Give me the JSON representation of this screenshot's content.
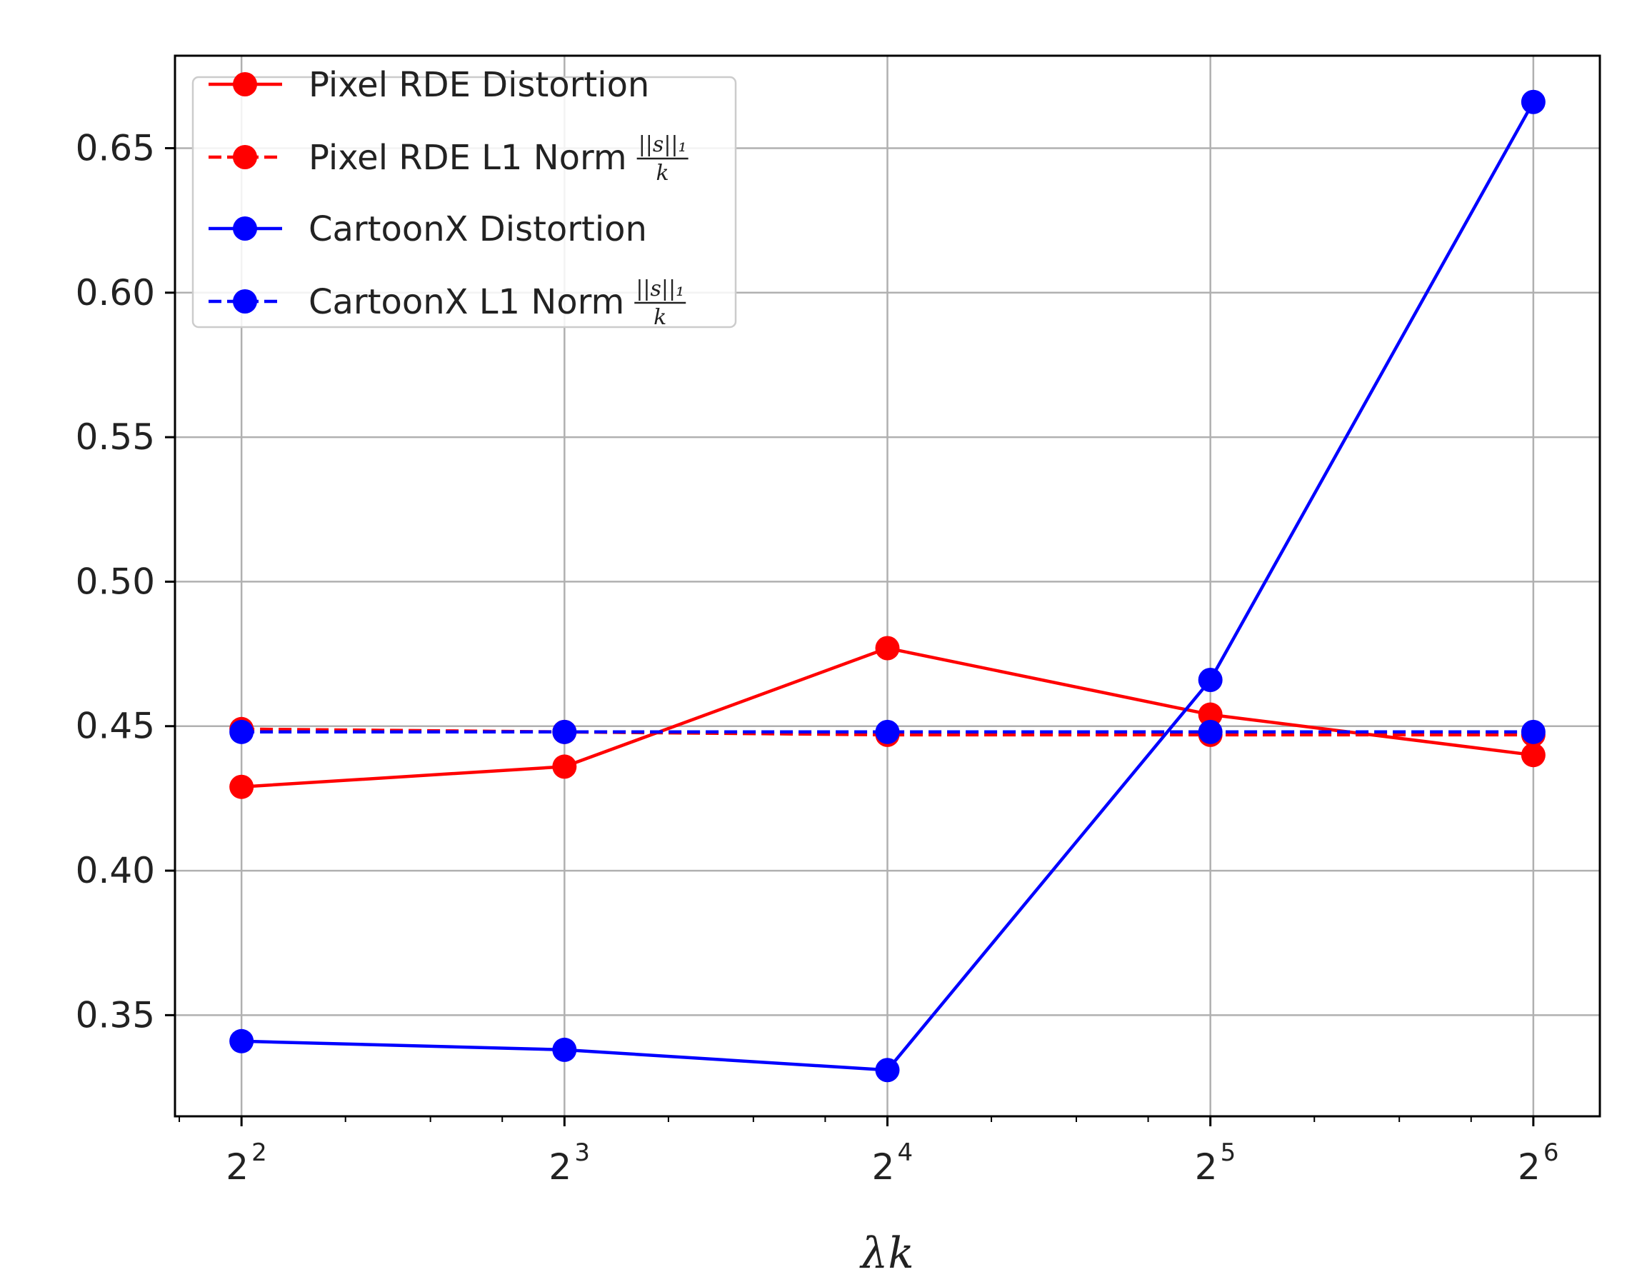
{
  "chart_data": {
    "type": "line",
    "xscale": "log2",
    "x": [
      4,
      8,
      16,
      32,
      64
    ],
    "x_tick_labels": [
      {
        "base": "2",
        "exp": "2"
      },
      {
        "base": "2",
        "exp": "3"
      },
      {
        "base": "2",
        "exp": "4"
      },
      {
        "base": "2",
        "exp": "5"
      },
      {
        "base": "2",
        "exp": "6"
      }
    ],
    "xlabel": "λk",
    "ylabel": "",
    "title": "",
    "ylim": [
      0.315,
      0.682
    ],
    "yticks": [
      0.35,
      0.4,
      0.45,
      0.5,
      0.55,
      0.6,
      0.65
    ],
    "ytick_labels": [
      "0.35",
      "0.40",
      "0.45",
      "0.50",
      "0.55",
      "0.60",
      "0.65"
    ],
    "grid": true,
    "legend_position": "top-left",
    "series": [
      {
        "name": "Pixel RDE Distortion",
        "color": "#ff0000",
        "linestyle": "solid",
        "marker": "circle",
        "values": [
          0.429,
          0.436,
          0.477,
          0.454,
          0.44
        ]
      },
      {
        "name": "Pixel RDE L1 Norm",
        "legend_fraction": {
          "numerator": "||s||₁",
          "denominator": "k"
        },
        "color": "#ff0000",
        "linestyle": "dashed",
        "marker": "circle",
        "values": [
          0.449,
          0.448,
          0.447,
          0.447,
          0.447
        ]
      },
      {
        "name": "CartoonX Distortion",
        "color": "#0000ff",
        "linestyle": "solid",
        "marker": "circle",
        "values": [
          0.341,
          0.338,
          0.331,
          0.466,
          0.666
        ]
      },
      {
        "name": "CartoonX L1 Norm",
        "legend_fraction": {
          "numerator": "||s||₁",
          "denominator": "k"
        },
        "color": "#0000ff",
        "linestyle": "dashed",
        "marker": "circle",
        "values": [
          0.448,
          0.448,
          0.448,
          0.448,
          0.448
        ]
      }
    ]
  }
}
